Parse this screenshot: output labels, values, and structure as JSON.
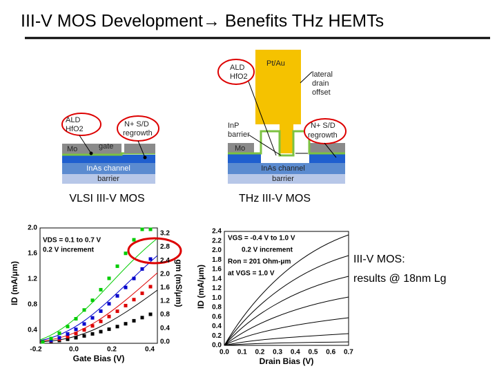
{
  "header": {
    "title": "III-V MOS Development→ Benefits THz HEMTs"
  },
  "left_diagram": {
    "ald": "ALD",
    "hfo2": "HfO2",
    "nplus": "N+ S/D",
    "regrowth": "regrowth",
    "mo": "Mo",
    "gate": "gate",
    "channel": "InAs channel",
    "barrier": "barrier",
    "caption": "VLSI III-V MOS"
  },
  "right_diagram": {
    "ald": "ALD",
    "hfo2": "HfO2",
    "ptau": "Pt/Au",
    "lateral": "lateral",
    "drain": "drain",
    "offset": "offset",
    "inp": "InP",
    "barrier_top": "barrier",
    "nplus": "N+ S/D",
    "regrowth": "regrowth",
    "mo": "Mo",
    "channel": "InAs channel",
    "barrier": "barrier",
    "caption": "THz III-V MOS"
  },
  "left_chart": {
    "annotation1": "VDS = 0.1 to 0.7 V",
    "annotation2": "0.2 V increment",
    "xlabel": "Gate Bias (V)",
    "ylabel": "ID (mA/μm)",
    "y2label": "gm (mS/μm)",
    "yticks": [
      "2.0",
      "1.6",
      "1.2",
      "0.8",
      "0.4"
    ],
    "y2ticks": [
      "3.2",
      "2.8",
      "2.4",
      "2.0",
      "1.6",
      "1.2",
      "0.8",
      "0.4",
      "0.0"
    ],
    "xticks": [
      "-0.2",
      "0.0",
      "0.2",
      "0.4"
    ]
  },
  "right_chart": {
    "annotation1": "VGS = -0.4 V to 1.0 V",
    "annotation2": "0.2 V increment",
    "annotation3": "Ron = 201 Ohm-μm",
    "annotation4": "at VGS = 1.0 V",
    "xlabel": "Drain Bias (V)",
    "ylabel": "ID (mA/μm)",
    "yticks": [
      "2.4",
      "2.2",
      "2.0",
      "1.8",
      "1.6",
      "1.4",
      "1.2",
      "1.0",
      "0.8",
      "0.6",
      "0.4",
      "0.2",
      "0.0"
    ],
    "xticks": [
      "0.0",
      "0.1",
      "0.2",
      "0.3",
      "0.4",
      "0.5",
      "0.6",
      "0.7"
    ]
  },
  "side_note": {
    "line1": "III-V MOS:",
    "line2": "results @ 18nm Lg"
  }
}
